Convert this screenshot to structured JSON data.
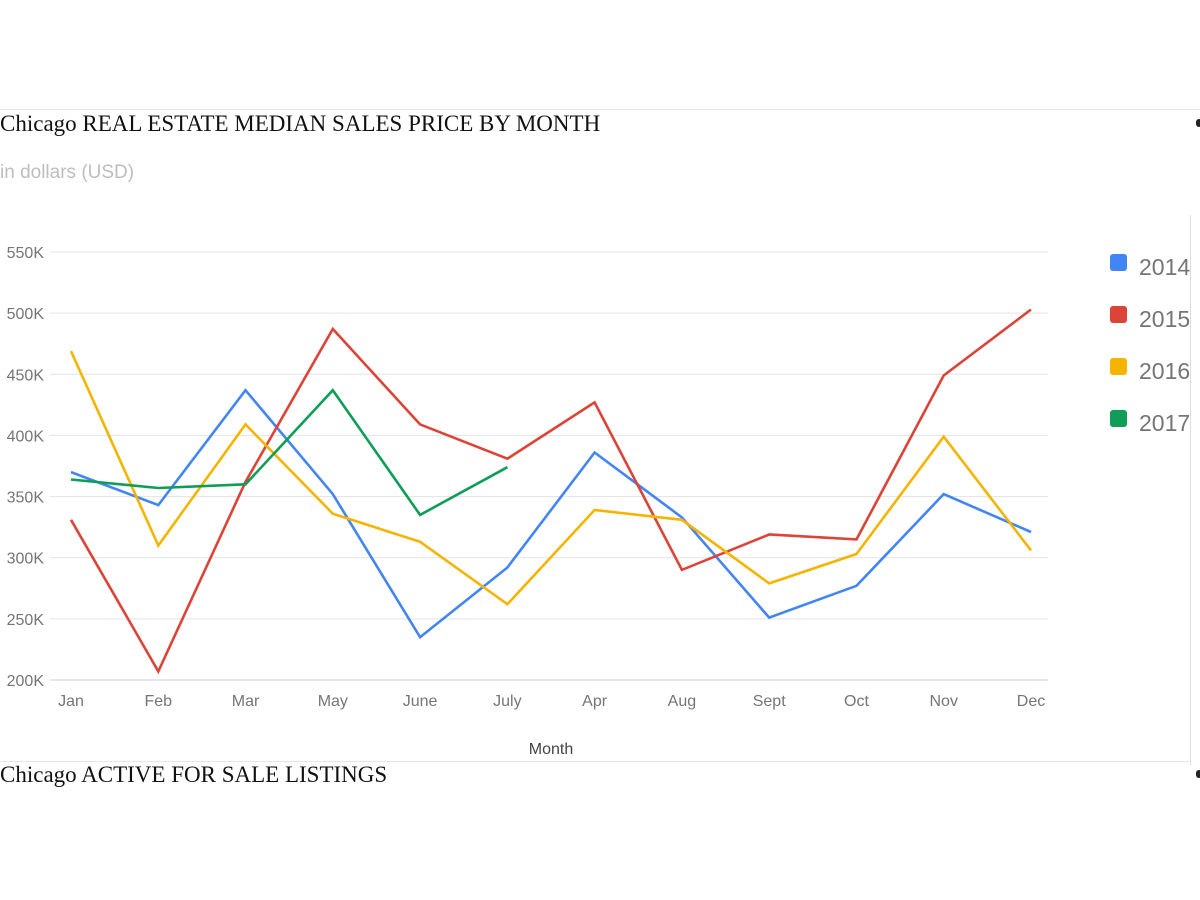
{
  "section_1": {
    "title": "Chicago REAL ESTATE MEDIAN SALES PRICE BY MONTH",
    "subtitle": "in dollars (USD)"
  },
  "section_2": {
    "title": "Chicago ACTIVE FOR SALE LISTINGS"
  },
  "chart_data": {
    "type": "line",
    "xlabel": "Month",
    "ylabel": "",
    "categories": [
      "Jan",
      "Feb",
      "Mar",
      "May",
      "June",
      "July",
      "Apr",
      "Aug",
      "Sept",
      "Oct",
      "Nov",
      "Dec"
    ],
    "ylim": [
      200000,
      550000
    ],
    "yticks": [
      200000,
      250000,
      300000,
      350000,
      400000,
      450000,
      500000,
      550000
    ],
    "ytick_labels": [
      "200K",
      "250K",
      "300K",
      "350K",
      "400K",
      "450K",
      "500K",
      "550K"
    ],
    "grid": true,
    "legend_position": "right",
    "series": [
      {
        "name": "2014",
        "color": "#4285f4",
        "values": [
          370000,
          343000,
          437000,
          352000,
          235000,
          292000,
          386000,
          333000,
          251000,
          277000,
          352000,
          321000
        ]
      },
      {
        "name": "2015",
        "color": "#db4437",
        "values": [
          331000,
          207000,
          362000,
          487000,
          409000,
          381000,
          427000,
          290000,
          319000,
          315000,
          449000,
          503000
        ]
      },
      {
        "name": "2016",
        "color": "#f4b400",
        "values": [
          469000,
          310000,
          409000,
          336000,
          313000,
          262000,
          339000,
          331000,
          279000,
          303000,
          399000,
          306000
        ]
      },
      {
        "name": "2017",
        "color": "#0f9d58",
        "values": [
          364000,
          357000,
          360000,
          437000,
          335000,
          374000,
          null,
          null,
          null,
          null,
          null,
          null
        ]
      }
    ]
  }
}
